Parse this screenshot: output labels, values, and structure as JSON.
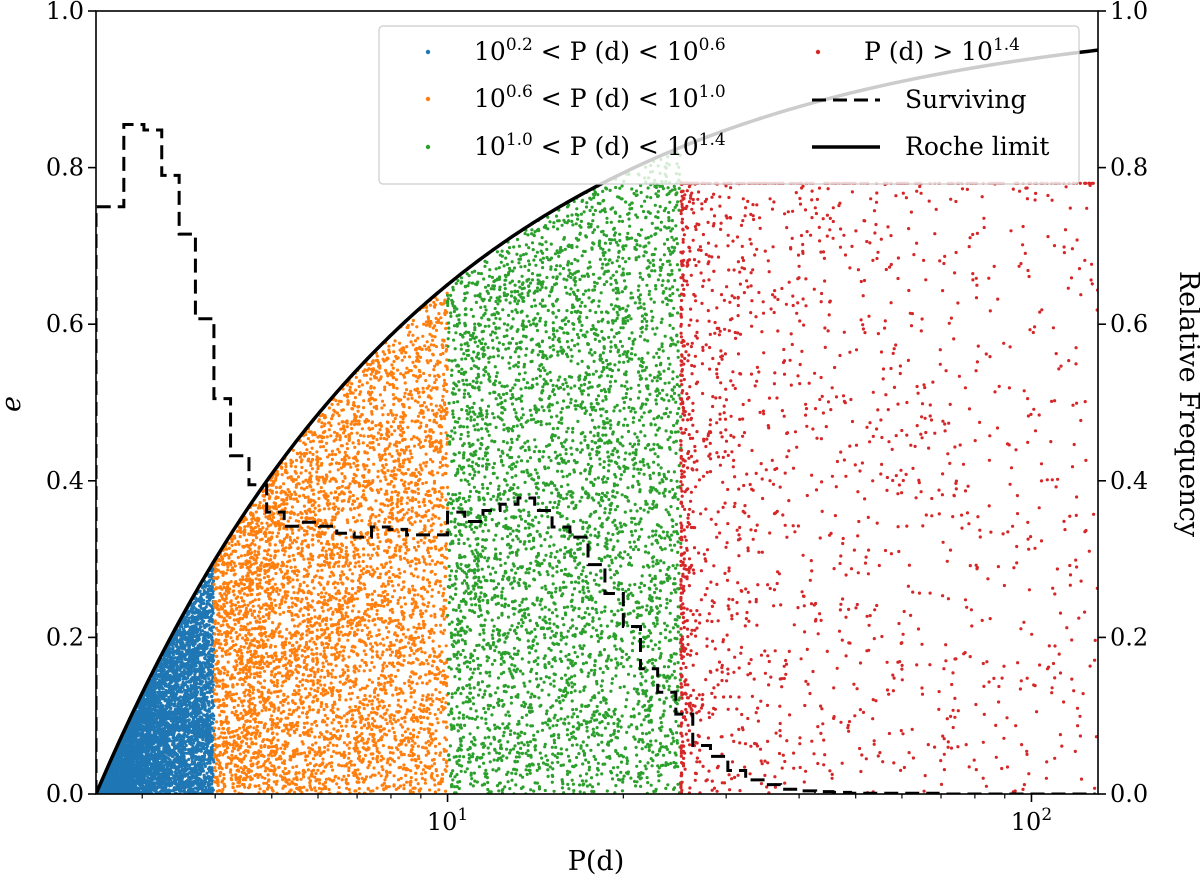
{
  "chart_data": {
    "type": "scatter",
    "x_scale": "log",
    "xlabel": "P(d)",
    "ylabel": "e",
    "y2label": "Relative Frequency",
    "xlim": [
      2.5,
      130
    ],
    "ylim": [
      0,
      1.0
    ],
    "y2lim": [
      0,
      1.0
    ],
    "x_major_ticks": [
      10,
      100
    ],
    "x_tick_labels": [
      {
        "base": "10",
        "exp": "1"
      },
      {
        "base": "10",
        "exp": "2"
      }
    ],
    "y_ticks": [
      "0.0",
      "0.2",
      "0.4",
      "0.6",
      "0.8",
      "1.0"
    ],
    "y2_ticks": [
      "0.0",
      "0.2",
      "0.4",
      "0.6",
      "0.8",
      "1.0"
    ],
    "grid": false,
    "legend_position": "top-right",
    "series": [
      {
        "kind": "scatter",
        "color": "#1f77b4",
        "period_range_d": [
          2.5,
          3.98
        ],
        "label": {
          "pre": "10",
          "e1": "0.2",
          "mid": " < P (d) < 10",
          "e2": "0.6"
        }
      },
      {
        "kind": "scatter",
        "color": "#ff7f0e",
        "period_range_d": [
          3.98,
          10.0
        ],
        "label": {
          "pre": "10",
          "e1": "0.6",
          "mid": " < P (d) < 10",
          "e2": "1.0"
        }
      },
      {
        "kind": "scatter",
        "color": "#2ca02c",
        "period_range_d": [
          10.0,
          25.1
        ],
        "label": {
          "pre": "10",
          "e1": "1.0",
          "mid": " < P (d) < 10",
          "e2": "1.4"
        }
      },
      {
        "kind": "scatter",
        "color": "#d62728",
        "period_range_d": [
          25.1,
          130
        ],
        "label": {
          "pre": "P (d) > 10",
          "e1": "1.4",
          "mid": "",
          "e2": ""
        }
      }
    ],
    "surviving": {
      "label": "Surviving",
      "bin_edges": [
        2.5,
        2.79,
        3.02,
        3.24,
        3.47,
        3.7,
        3.98,
        4.25,
        4.57,
        4.9,
        5.25,
        5.62,
        6.03,
        6.46,
        6.92,
        7.41,
        7.94,
        8.51,
        9.12,
        10.0,
        10.7,
        11.5,
        12.3,
        13.2,
        14.1,
        15.1,
        16.2,
        17.4,
        18.6,
        20.0,
        21.4,
        22.9,
        24.6,
        26.3,
        28.2,
        30.2,
        32.4,
        34.7,
        37.2,
        39.8,
        42.7,
        45.7,
        49.0,
        52.5,
        56.2,
        60.3,
        64.6,
        69.2,
        74.1,
        79.4,
        85.1,
        91.2,
        97.7,
        104.7,
        112.2,
        120.2,
        128.8
      ],
      "values": [
        0.75,
        0.855,
        0.848,
        0.79,
        0.715,
        0.607,
        0.505,
        0.432,
        0.395,
        0.36,
        0.342,
        0.347,
        0.342,
        0.333,
        0.328,
        0.341,
        0.338,
        0.331,
        0.331,
        0.36,
        0.348,
        0.362,
        0.37,
        0.378,
        0.362,
        0.341,
        0.328,
        0.293,
        0.256,
        0.214,
        0.16,
        0.13,
        0.102,
        0.062,
        0.048,
        0.03,
        0.018,
        0.012,
        0.006,
        0.004,
        0.003,
        0.002,
        0.001,
        0.001,
        0.001,
        0.001,
        0.001,
        0.0,
        0.0,
        0.0,
        0.0,
        0.0,
        0.0,
        0.0,
        0.0,
        0.0
      ]
    },
    "roche_limit": {
      "label": "Roche limit",
      "p_min_d": 2.5,
      "e_max_at_xmax": 0.95
    }
  }
}
